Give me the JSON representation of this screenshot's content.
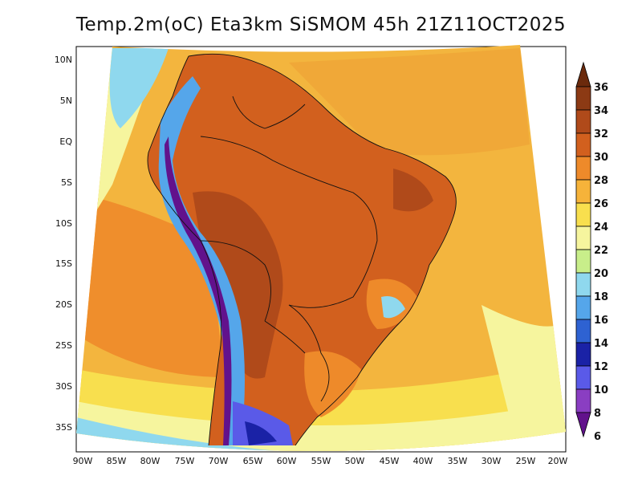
{
  "title": "Temp.2m(oC) Eta3km SiSMOM 45h 21Z11OCT2025",
  "lat_labels": [
    "10N",
    "5N",
    "EQ",
    "5S",
    "10S",
    "15S",
    "20S",
    "25S",
    "30S",
    "35S"
  ],
  "lon_labels": [
    "90W",
    "85W",
    "80W",
    "75W",
    "70W",
    "65W",
    "60W",
    "55W",
    "50W",
    "45W",
    "40W",
    "35W",
    "30W",
    "25W",
    "20W"
  ],
  "colorbar": {
    "labels": [
      "36",
      "34",
      "32",
      "30",
      "28",
      "26",
      "24",
      "22",
      "20",
      "18",
      "16",
      "14",
      "12",
      "10",
      "8",
      "6"
    ],
    "colors": [
      "#6b2a0c",
      "#8c3a14",
      "#b04a1a",
      "#d2601e",
      "#ee8a2a",
      "#f6b33a",
      "#f8df4e",
      "#f6f59e",
      "#c8ee8a",
      "#8fd8ee",
      "#55a6ea",
      "#2e62d2",
      "#1a22a6",
      "#5a5ae8",
      "#8a3ec2",
      "#62128c"
    ]
  }
}
